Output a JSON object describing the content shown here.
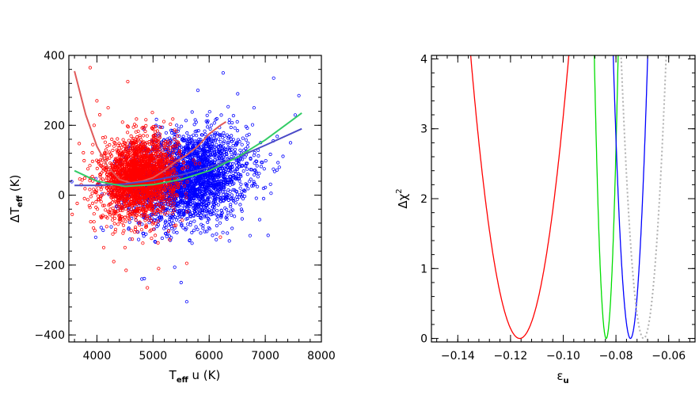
{
  "chart_data": [
    {
      "type": "scatter",
      "title": "",
      "xlabel": "T",
      "xlabel_sub": "eff",
      "xlabel_suffix": " u (K)",
      "ylabel": "ΔT",
      "ylabel_sub": "eff",
      "ylabel_suffix": " (K)",
      "xlim": [
        3500,
        8000
      ],
      "ylim": [
        -420,
        400
      ],
      "xticks": [
        4000,
        5000,
        6000,
        7000,
        8000
      ],
      "xtick_labels": [
        "4000",
        "5000",
        "6000",
        "7000",
        "8000"
      ],
      "yticks": [
        -400,
        -200,
        0,
        200,
        400
      ],
      "ytick_labels": [
        "−400",
        "−200",
        "0",
        "200",
        "400"
      ],
      "grid": false,
      "legend": "none",
      "colors": {
        "red": "#ff0000",
        "blue": "#0000ff",
        "red_fit": "#e05a5a",
        "blue_fit": "#4b4bc8",
        "green_fit": "#33cc66"
      },
      "series": [
        {
          "color": "red",
          "kind": "points",
          "n": 2300,
          "x_center": 4750,
          "x_spread": 330,
          "y_center": 50,
          "y_spread": 55,
          "sample_points": [
            [
              3880,
              365
            ],
            [
              4550,
              325
            ],
            [
              4000,
              270
            ],
            [
              4050,
              230
            ],
            [
              4500,
              -150
            ],
            [
              4520,
              -215
            ],
            [
              4900,
              -265
            ],
            [
              4120,
              -150
            ],
            [
              4300,
              -190
            ],
            [
              5600,
              -195
            ],
            [
              6200,
              -120
            ],
            [
              3950,
              200
            ],
            [
              4200,
              250
            ],
            [
              5100,
              -210
            ]
          ]
        },
        {
          "color": "blue",
          "kind": "points",
          "n": 2600,
          "x_center": 5650,
          "x_spread": 520,
          "y_center": 50,
          "y_spread": 65,
          "sample_points": [
            [
              6250,
              350
            ],
            [
              7600,
              285
            ],
            [
              7150,
              335
            ],
            [
              5600,
              -305
            ],
            [
              4800,
              -240
            ],
            [
              5500,
              -250
            ],
            [
              7050,
              -115
            ],
            [
              6900,
              -70
            ],
            [
              7250,
              80
            ],
            [
              7450,
              150
            ],
            [
              6500,
              210
            ],
            [
              6800,
              250
            ],
            [
              5800,
              300
            ],
            [
              5650,
              -130
            ]
          ]
        },
        {
          "color": "red_fit",
          "kind": "line",
          "x": [
            3600,
            3800,
            4000,
            4200,
            4400,
            4600,
            4800,
            5000,
            5200,
            5400,
            5600,
            5800,
            6000,
            6200,
            6300
          ],
          "y": [
            355,
            230,
            140,
            80,
            45,
            35,
            40,
            50,
            70,
            95,
            115,
            140,
            175,
            200,
            210
          ]
        },
        {
          "color": "blue_fit",
          "kind": "line",
          "x": [
            3600,
            4000,
            4500,
            5000,
            5500,
            6000,
            6500,
            7000,
            7650
          ],
          "y": [
            28,
            28,
            32,
            42,
            58,
            80,
            108,
            143,
            190
          ]
        },
        {
          "color": "green_fit",
          "kind": "line",
          "x": [
            3600,
            4000,
            4500,
            5000,
            5500,
            6000,
            6500,
            7000,
            7650
          ],
          "y": [
            70,
            40,
            25,
            30,
            45,
            70,
            108,
            158,
            235
          ]
        }
      ]
    },
    {
      "type": "line",
      "title": "",
      "xlabel": "ε",
      "xlabel_sub": "u",
      "ylabel": "Δχ",
      "ylabel_sup": "2",
      "xlim": [
        -0.15,
        -0.05
      ],
      "ylim": [
        -0.05,
        4.05
      ],
      "xticks": [
        -0.14,
        -0.12,
        -0.1,
        -0.08,
        -0.06
      ],
      "xtick_labels": [
        "−0.14",
        "−0.12",
        "−0.10",
        "−0.08",
        "−0.06"
      ],
      "yticks": [
        0,
        1,
        2,
        3,
        4
      ],
      "ytick_labels": [
        "0",
        "1",
        "2",
        "3",
        "4"
      ],
      "grid": false,
      "legend": "none",
      "series": [
        {
          "color": "#ff0000",
          "style": "solid",
          "min_x": -0.1165,
          "half_width": 0.0185
        },
        {
          "color": "#00dd00",
          "style": "solid",
          "min_x": -0.0837,
          "half_width": 0.0045
        },
        {
          "color": "#0000ff",
          "style": "solid",
          "min_x": -0.0745,
          "half_width": 0.0065
        },
        {
          "color": "#b0b0b0",
          "style": "dotted",
          "min_x": -0.0695,
          "half_width": 0.0085
        }
      ]
    }
  ]
}
